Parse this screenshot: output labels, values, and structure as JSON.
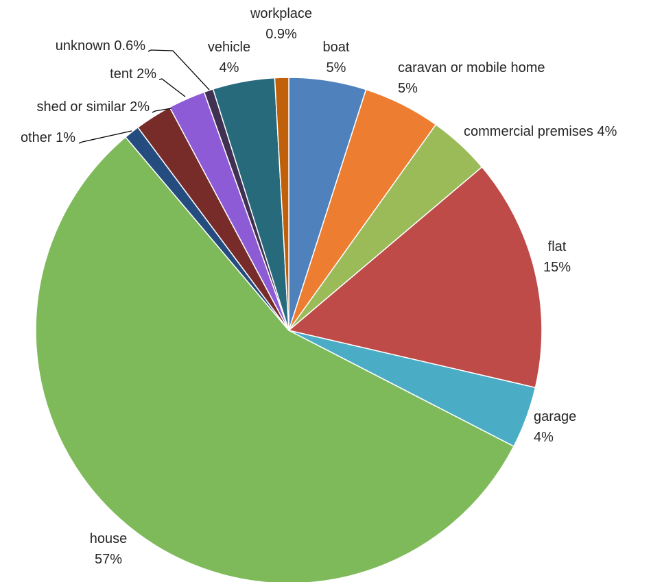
{
  "chart_data": {
    "type": "pie",
    "start_angle_deg": 0,
    "direction": "clockwise",
    "slices": [
      {
        "name": "boat",
        "value": 5,
        "label": "5%",
        "color": "#4F81BD"
      },
      {
        "name": "caravan or mobile home",
        "value": 5,
        "label": "5%",
        "color": "#ED7D31"
      },
      {
        "name": "commercial premises",
        "value": 4,
        "label": "4%",
        "color": "#9BBB59"
      },
      {
        "name": "flat",
        "value": 15,
        "label": "15%",
        "color": "#BE4B48"
      },
      {
        "name": "garage",
        "value": 4,
        "label": "4%",
        "color": "#4BACC6"
      },
      {
        "name": "house",
        "value": 57,
        "label": "57%",
        "color": "#7FBA5A"
      },
      {
        "name": "other",
        "value": 1,
        "label": "1%",
        "color": "#254C7F"
      },
      {
        "name": "shed or similar",
        "value": 2.4,
        "label": "2%",
        "color": "#772C2A"
      },
      {
        "name": "tent",
        "value": 2.4,
        "label": "2%",
        "color": "#8E5BD6"
      },
      {
        "name": "unknown",
        "value": 0.6,
        "label": "0.6%",
        "color": "#403152"
      },
      {
        "name": "vehicle",
        "value": 4,
        "label": "4%",
        "color": "#276A7C"
      },
      {
        "name": "workplace",
        "value": 0.9,
        "label": "0.9%",
        "color": "#C0600B"
      }
    ]
  }
}
